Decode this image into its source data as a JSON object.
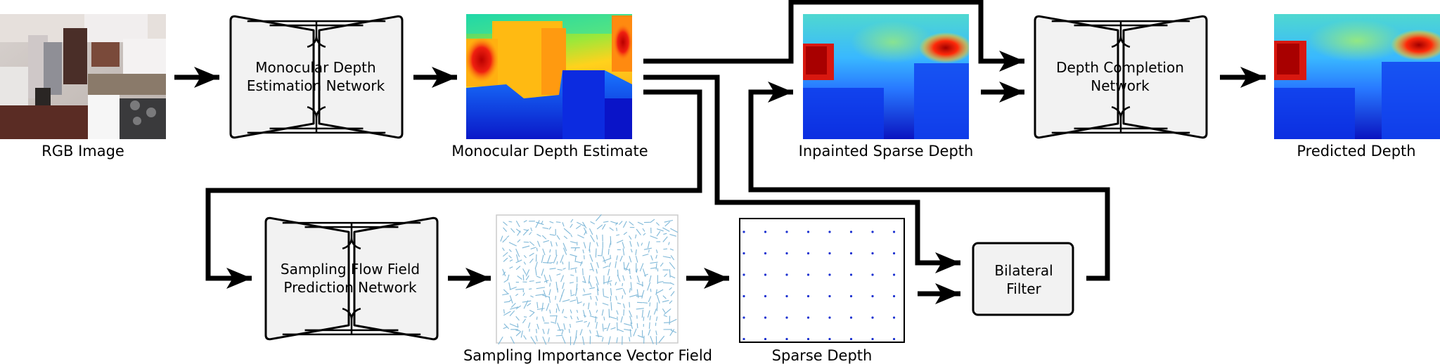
{
  "captions": {
    "rgb": "RGB Image",
    "mono": "Monocular Depth Estimate",
    "inpaint": "Inpainted Sparse Depth",
    "pred": "Predicted Depth",
    "vector": "Sampling Importance Vector Field",
    "sparse": "Sparse Depth"
  },
  "networks": {
    "mde": [
      "Monocular Depth",
      "Estimation Network"
    ],
    "dc": [
      "Depth Completion",
      "Network"
    ],
    "sff": [
      "Sampling Flow Field",
      "Prediction Network"
    ]
  },
  "filter": [
    "Bilateral",
    "Filter"
  ],
  "colors": {
    "netFill": "#f2f2f2",
    "stroke": "#000000",
    "vectors": "#7fb8d8",
    "dots": "#1a2fd0"
  }
}
